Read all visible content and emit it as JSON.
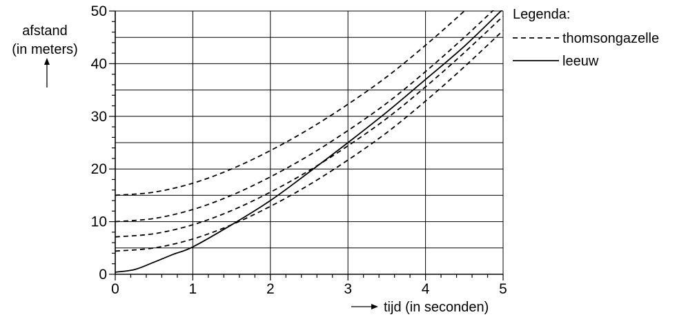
{
  "chart_data": {
    "type": "line",
    "x_label": "tijd (in seconden)",
    "y_label_line1": "afstand",
    "y_label_line2": "(in meters)",
    "xlim": [
      0,
      5
    ],
    "ylim": [
      0,
      50
    ],
    "x_ticks": [
      "0",
      "1",
      "2",
      "3",
      "4",
      "5"
    ],
    "y_ticks": [
      "0",
      "10",
      "20",
      "30",
      "40",
      "50"
    ],
    "grid": true,
    "legend_position": "right",
    "legend": {
      "title": "Legenda:",
      "items": [
        {
          "label": "thomsongazelle",
          "style": "dashed"
        },
        {
          "label": "leeuw",
          "style": "solid"
        }
      ]
    },
    "series": [
      {
        "style": "dashed",
        "x": [
          0,
          0.5,
          1,
          1.5,
          2,
          2.5,
          3,
          3.5,
          4,
          4.5,
          5
        ],
        "y": [
          15,
          15.6,
          17.3,
          20,
          23.5,
          27.6,
          32.3,
          37.5,
          43.5,
          50,
          56.9
        ]
      },
      {
        "style": "dashed",
        "x": [
          0,
          0.5,
          1,
          1.5,
          2,
          2.5,
          3,
          3.5,
          4,
          4.5,
          5
        ],
        "y": [
          10,
          10.6,
          12.3,
          15,
          18.5,
          22.6,
          27.3,
          32.5,
          38.5,
          45,
          51.9
        ]
      },
      {
        "style": "dashed",
        "x": [
          0,
          0.5,
          1,
          1.5,
          2,
          2.5,
          3,
          3.5,
          4,
          4.5,
          5
        ],
        "y": [
          7.1,
          7.7,
          9.4,
          12.1,
          15.6,
          19.7,
          24.4,
          29.6,
          35.6,
          42.1,
          49
        ]
      },
      {
        "style": "dashed",
        "x": [
          0,
          0.5,
          1,
          1.5,
          2,
          2.5,
          3,
          3.5,
          4,
          4.5,
          5
        ],
        "y": [
          4.4,
          5,
          6.7,
          9.4,
          12.9,
          17,
          21.7,
          26.9,
          32.9,
          39.4,
          46.3
        ]
      },
      {
        "style": "solid",
        "x": [
          0,
          0.25,
          0.5,
          0.75,
          1,
          1.5,
          2,
          2.5,
          3,
          3.5,
          4,
          4.5,
          5
        ],
        "y": [
          0.4,
          0.9,
          2.3,
          3.8,
          5.2,
          9.4,
          14,
          19.4,
          25,
          30.8,
          37,
          43.3,
          50.4
        ]
      }
    ]
  }
}
